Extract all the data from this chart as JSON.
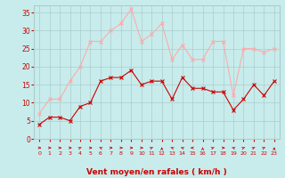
{
  "x": [
    0,
    1,
    2,
    3,
    4,
    5,
    6,
    7,
    8,
    9,
    10,
    11,
    12,
    13,
    14,
    15,
    16,
    17,
    18,
    19,
    20,
    21,
    22,
    23
  ],
  "wind_avg": [
    4,
    6,
    6,
    5,
    9,
    10,
    16,
    17,
    17,
    19,
    15,
    16,
    16,
    11,
    17,
    14,
    14,
    13,
    13,
    8,
    11,
    15,
    12,
    16
  ],
  "wind_gust": [
    7,
    11,
    11,
    16,
    20,
    27,
    27,
    30,
    32,
    36,
    27,
    29,
    32,
    22,
    26,
    22,
    22,
    27,
    27,
    12,
    25,
    25,
    24,
    25
  ],
  "color_avg": "#cc0000",
  "color_gust": "#ffaaaa",
  "bg_color": "#c8ecec",
  "grid_color": "#aacccc",
  "xlabel": "Vent moyen/en rafales ( km/h )",
  "xlabel_color": "#cc0000",
  "tick_color": "#cc0000",
  "ylim": [
    0,
    37
  ],
  "yticks": [
    0,
    5,
    10,
    15,
    20,
    25,
    30,
    35
  ],
  "arrow_angles": [
    90,
    90,
    90,
    90,
    45,
    90,
    315,
    90,
    90,
    90,
    90,
    45,
    0,
    315,
    315,
    270,
    0,
    45,
    90,
    315,
    45,
    45,
    45,
    0
  ]
}
